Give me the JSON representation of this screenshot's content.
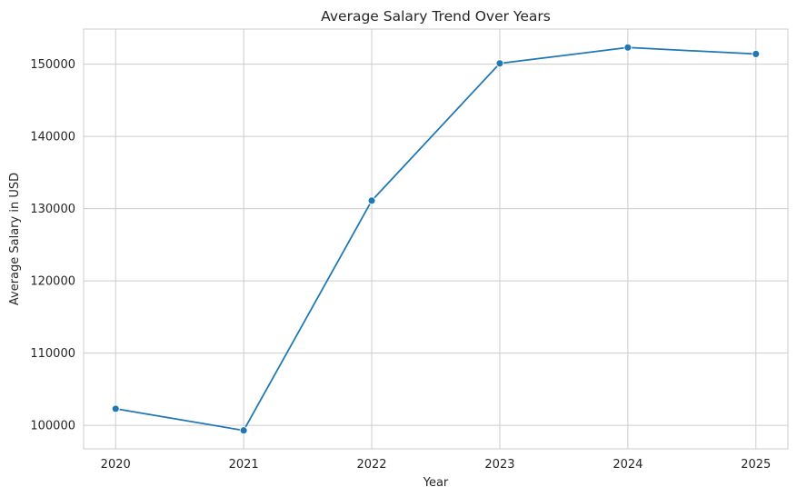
{
  "chart_data": {
    "type": "line",
    "title": "Average Salary Trend Over Years",
    "xlabel": "Year",
    "ylabel": "Average Salary in USD",
    "x": [
      2020,
      2021,
      2022,
      2023,
      2024,
      2025
    ],
    "series": [
      {
        "values": [
          102300,
          99300,
          131100,
          150100,
          152300,
          151400
        ],
        "color": "#1f77b4",
        "marker": "circle"
      }
    ],
    "xlim": [
      2019.75,
      2025.25
    ],
    "ylim": [
      96750,
      154850
    ],
    "x_ticks": [
      "2020",
      "2021",
      "2022",
      "2023",
      "2024",
      "2025"
    ],
    "y_ticks": [
      "100000",
      "110000",
      "120000",
      "130000",
      "140000",
      "150000"
    ],
    "grid": true,
    "style": "seaborn-whitegrid",
    "colors": {
      "grid": "#cccccc",
      "text": "#262626",
      "background": "#ffffff"
    }
  }
}
